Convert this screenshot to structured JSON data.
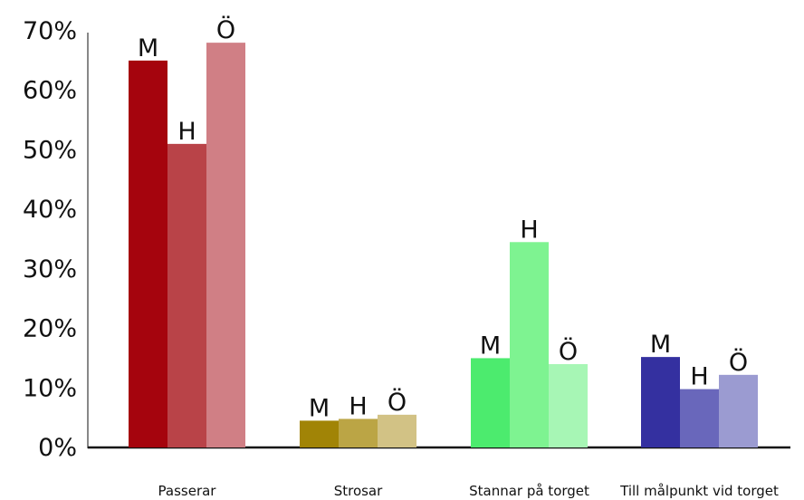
{
  "chart_data": {
    "type": "bar",
    "categories": [
      "Passerar",
      "Strosar",
      "Stannar på torget",
      "Till målpunkt vid torget"
    ],
    "series": [
      {
        "name": "M",
        "values": [
          65,
          4.5,
          15,
          15.2
        ]
      },
      {
        "name": "H",
        "values": [
          51,
          4.8,
          34.5,
          9.8
        ]
      },
      {
        "name": "Ö",
        "values": [
          68,
          5.5,
          14,
          12.2
        ]
      }
    ],
    "bar_labels": [
      "M",
      "H",
      "Ö"
    ],
    "colors": [
      [
        "#a5040d",
        "#b94348",
        "#d07f85"
      ],
      [
        "#a18406",
        "#bba545",
        "#d2c285"
      ],
      [
        "#4ceb6e",
        "#7ef391",
        "#a7f6b5"
      ],
      [
        "#3430a0",
        "#6967bb",
        "#9b9bd1"
      ]
    ],
    "yticks": [
      "0%",
      "10%",
      "20%",
      "30%",
      "40%",
      "50%",
      "60%",
      "70%"
    ],
    "ylim": [
      0,
      70
    ],
    "grid": false,
    "legend": "none",
    "title": "",
    "xlabel": "",
    "ylabel": ""
  }
}
